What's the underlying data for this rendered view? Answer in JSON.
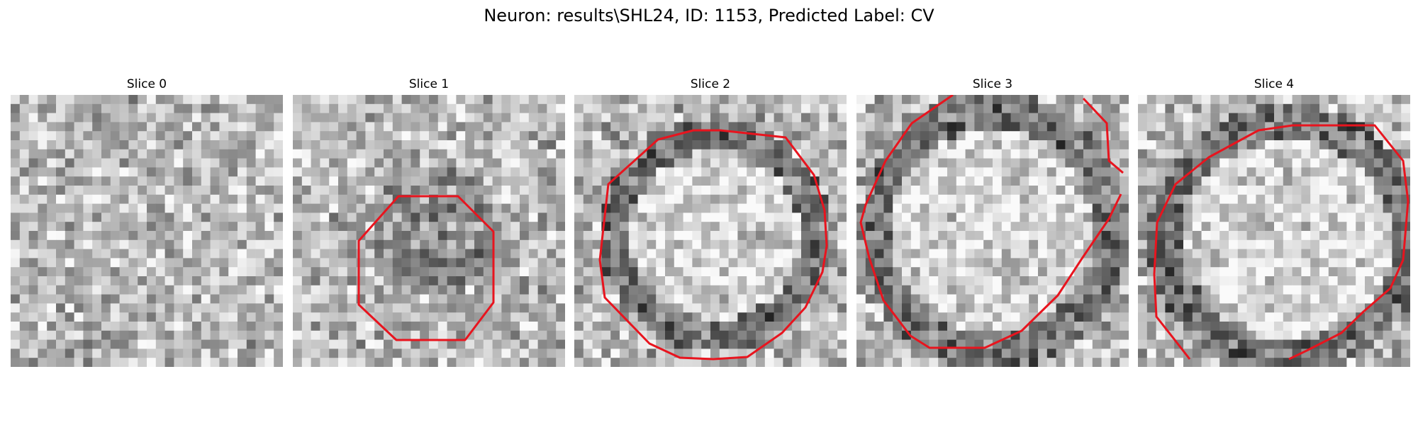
{
  "figure": {
    "title": "Neuron: results\\SHL24, ID: 1153, Predicted Label: CV"
  },
  "slices": [
    {
      "title": "Slice 0",
      "contour": false
    },
    {
      "title": "Slice 1",
      "contour": true
    },
    {
      "title": "Slice 2",
      "contour": true
    },
    {
      "title": "Slice 3",
      "contour": true
    },
    {
      "title": "Slice 4",
      "contour": true
    }
  ],
  "colors": {
    "contour": "#e8141e",
    "background": "#ffffff"
  }
}
